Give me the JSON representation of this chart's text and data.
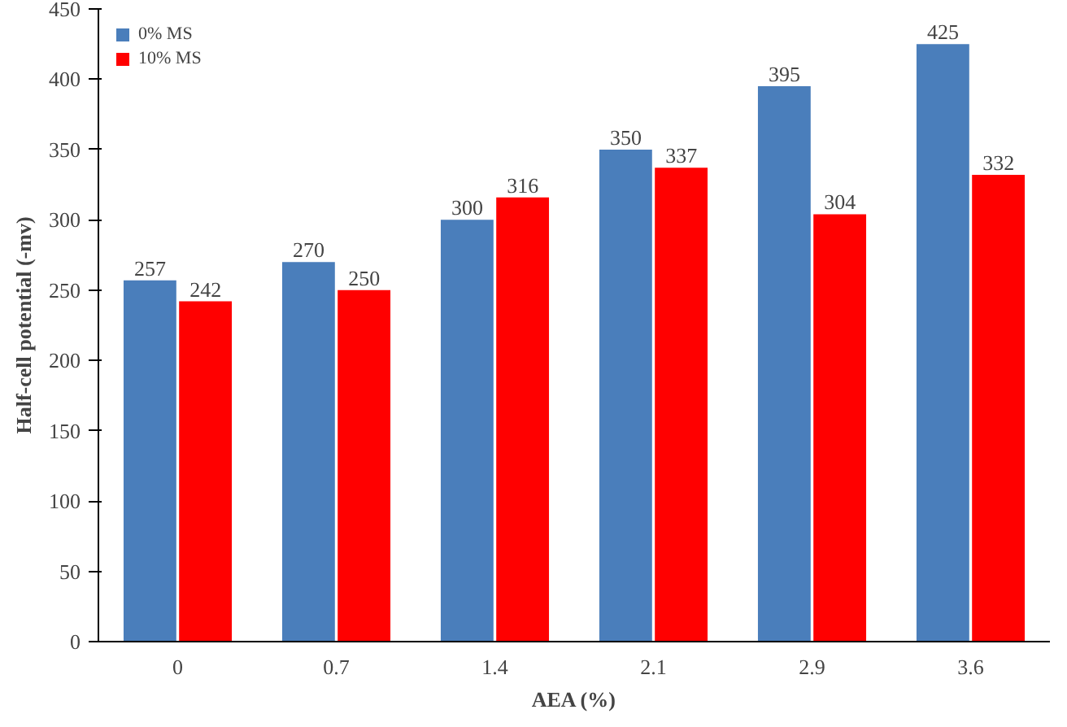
{
  "chart_data": {
    "type": "bar",
    "xlabel": "AEA (%)",
    "ylabel": "Half-cell potential (-mv)",
    "categories": [
      "0",
      "0.7",
      "1.4",
      "2.1",
      "2.9",
      "3.6"
    ],
    "series": [
      {
        "name": "0% MS",
        "color": "#4a7ebb",
        "values": [
          257,
          270,
          300,
          350,
          395,
          425
        ]
      },
      {
        "name": "10% MS",
        "color": "#ff0000",
        "values": [
          242,
          250,
          316,
          337,
          304,
          332
        ]
      }
    ],
    "ylim": [
      0,
      450
    ],
    "yticks": [
      0,
      50,
      100,
      150,
      200,
      250,
      300,
      350,
      400,
      450
    ],
    "data_labels": true,
    "legend": "top left",
    "grid": false
  }
}
